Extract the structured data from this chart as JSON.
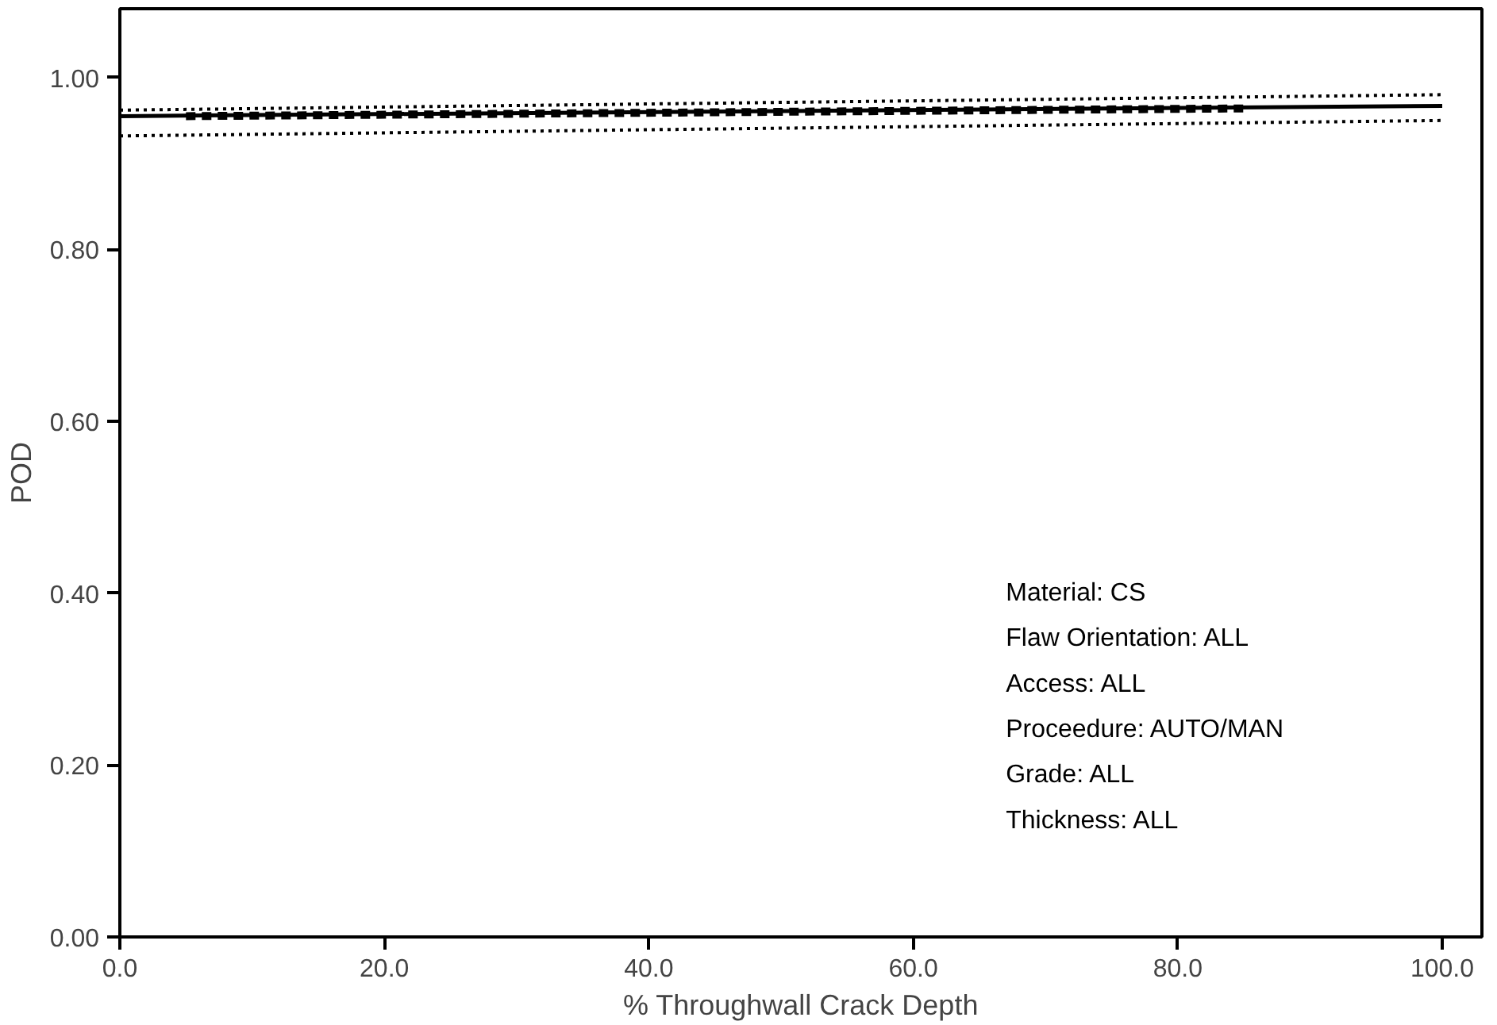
{
  "chart_data": {
    "type": "line",
    "xlabel": "% Throughwall Crack Depth",
    "ylabel": "POD",
    "xlim": [
      0,
      103
    ],
    "ylim": [
      0,
      1.08
    ],
    "xticks": [
      {
        "value": 0,
        "label": "0.0"
      },
      {
        "value": 20,
        "label": "20.0"
      },
      {
        "value": 40,
        "label": "40.0"
      },
      {
        "value": 60,
        "label": "60.0"
      },
      {
        "value": 80,
        "label": "80.0"
      },
      {
        "value": 100,
        "label": "100.0"
      }
    ],
    "yticks": [
      {
        "value": 0,
        "label": "0.00"
      },
      {
        "value": 0.2,
        "label": "0.20"
      },
      {
        "value": 0.4,
        "label": "0.40"
      },
      {
        "value": 0.6,
        "label": "0.60"
      },
      {
        "value": 0.8,
        "label": "0.80"
      },
      {
        "value": 1.0,
        "label": "1.00"
      }
    ],
    "grid": false,
    "series": [
      {
        "color": "#000000",
        "x": [
          0,
          100
        ],
        "values": [
          0.955,
          0.967
        ],
        "line_style": "solid"
      },
      {
        "color": "#000000",
        "x": [
          0,
          100
        ],
        "values": [
          0.932,
          0.95
        ],
        "line_style": "dotted"
      },
      {
        "color": "#000000",
        "x": [
          0,
          100
        ],
        "values": [
          0.962,
          0.98
        ],
        "line_style": "dotted"
      },
      {
        "color": "#000000",
        "x": [
          5,
          85
        ],
        "values": [
          0.955,
          0.964
        ],
        "line_style": "dashed"
      }
    ],
    "annotations": [
      "Material: CS",
      "Flaw Orientation: ALL",
      "Access: ALL",
      "Proceedure: AUTO/MAN",
      "Grade: ALL",
      "Thickness:  ALL"
    ]
  }
}
